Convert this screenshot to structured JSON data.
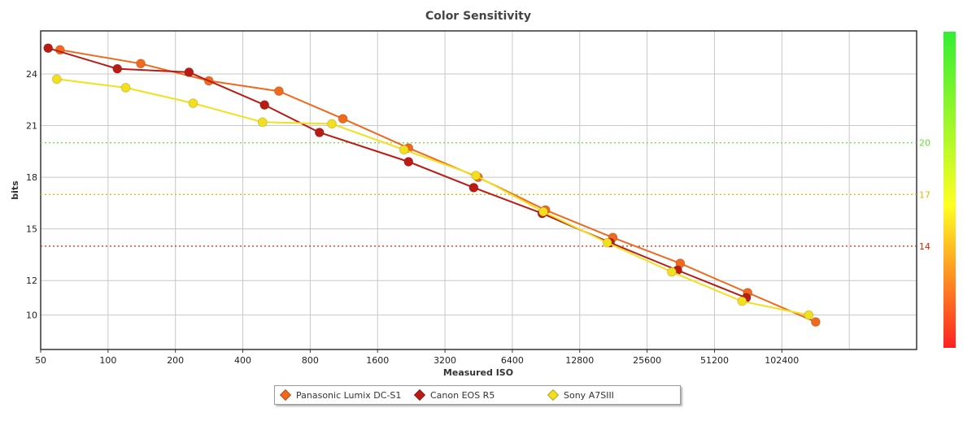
{
  "chart_data": {
    "type": "line",
    "title": "Color Sensitivity",
    "xlabel": "Measured ISO",
    "ylabel": "bits",
    "x_scale": "log2",
    "xlim": [
      50,
      409600
    ],
    "ylim": [
      8,
      26.5
    ],
    "x_ticks": [
      50,
      100,
      200,
      400,
      800,
      1600,
      3200,
      6400,
      12800,
      25600,
      51200,
      102400
    ],
    "x_tick_labels": [
      "50",
      "100",
      "200",
      "400",
      "800",
      "1600",
      "3200",
      "6400",
      "12800",
      "25600",
      "51200",
      "102400"
    ],
    "y_ticks": [
      10,
      12,
      15,
      18,
      21,
      24
    ],
    "y_tick_labels": [
      "10",
      "12",
      "15",
      "18",
      "21",
      "24"
    ],
    "grid": true,
    "legend_position": "bottom",
    "reference_lines": [
      {
        "value": 20,
        "label": "20",
        "color": "#66dd33"
      },
      {
        "value": 17,
        "label": "17",
        "color": "#e8b800"
      },
      {
        "value": 14,
        "label": "14",
        "color": "#dd2200"
      }
    ],
    "color_scale": {
      "top": "#33ee33",
      "middle": "#ffff22",
      "bottom": "#ff2222"
    },
    "series": [
      {
        "name": "Panasonic Lumix DC-S1",
        "color": "#f06a1e",
        "x": [
          61,
          140,
          282,
          580,
          1120,
          2200,
          4500,
          9000,
          18000,
          36000,
          72000,
          145000
        ],
        "y": [
          25.4,
          24.6,
          23.6,
          23.0,
          21.4,
          19.7,
          18.0,
          16.1,
          14.5,
          13.0,
          11.3,
          9.6
        ]
      },
      {
        "name": "Canon EOS R5",
        "color": "#b81c15",
        "x": [
          54,
          110,
          230,
          500,
          880,
          2200,
          4300,
          8700,
          17500,
          35000,
          71000
        ],
        "y": [
          25.5,
          24.3,
          24.1,
          22.2,
          20.6,
          18.9,
          17.4,
          15.9,
          14.2,
          12.6,
          11.0
        ]
      },
      {
        "name": "Sony A7SIII",
        "color": "#f2e01e",
        "x": [
          59,
          120,
          240,
          490,
          1000,
          2100,
          4400,
          8800,
          17000,
          33000,
          68000,
          135000
        ],
        "y": [
          23.7,
          23.2,
          22.3,
          21.2,
          21.1,
          19.6,
          18.1,
          16.0,
          14.2,
          12.5,
          10.8,
          10.0
        ]
      }
    ]
  }
}
